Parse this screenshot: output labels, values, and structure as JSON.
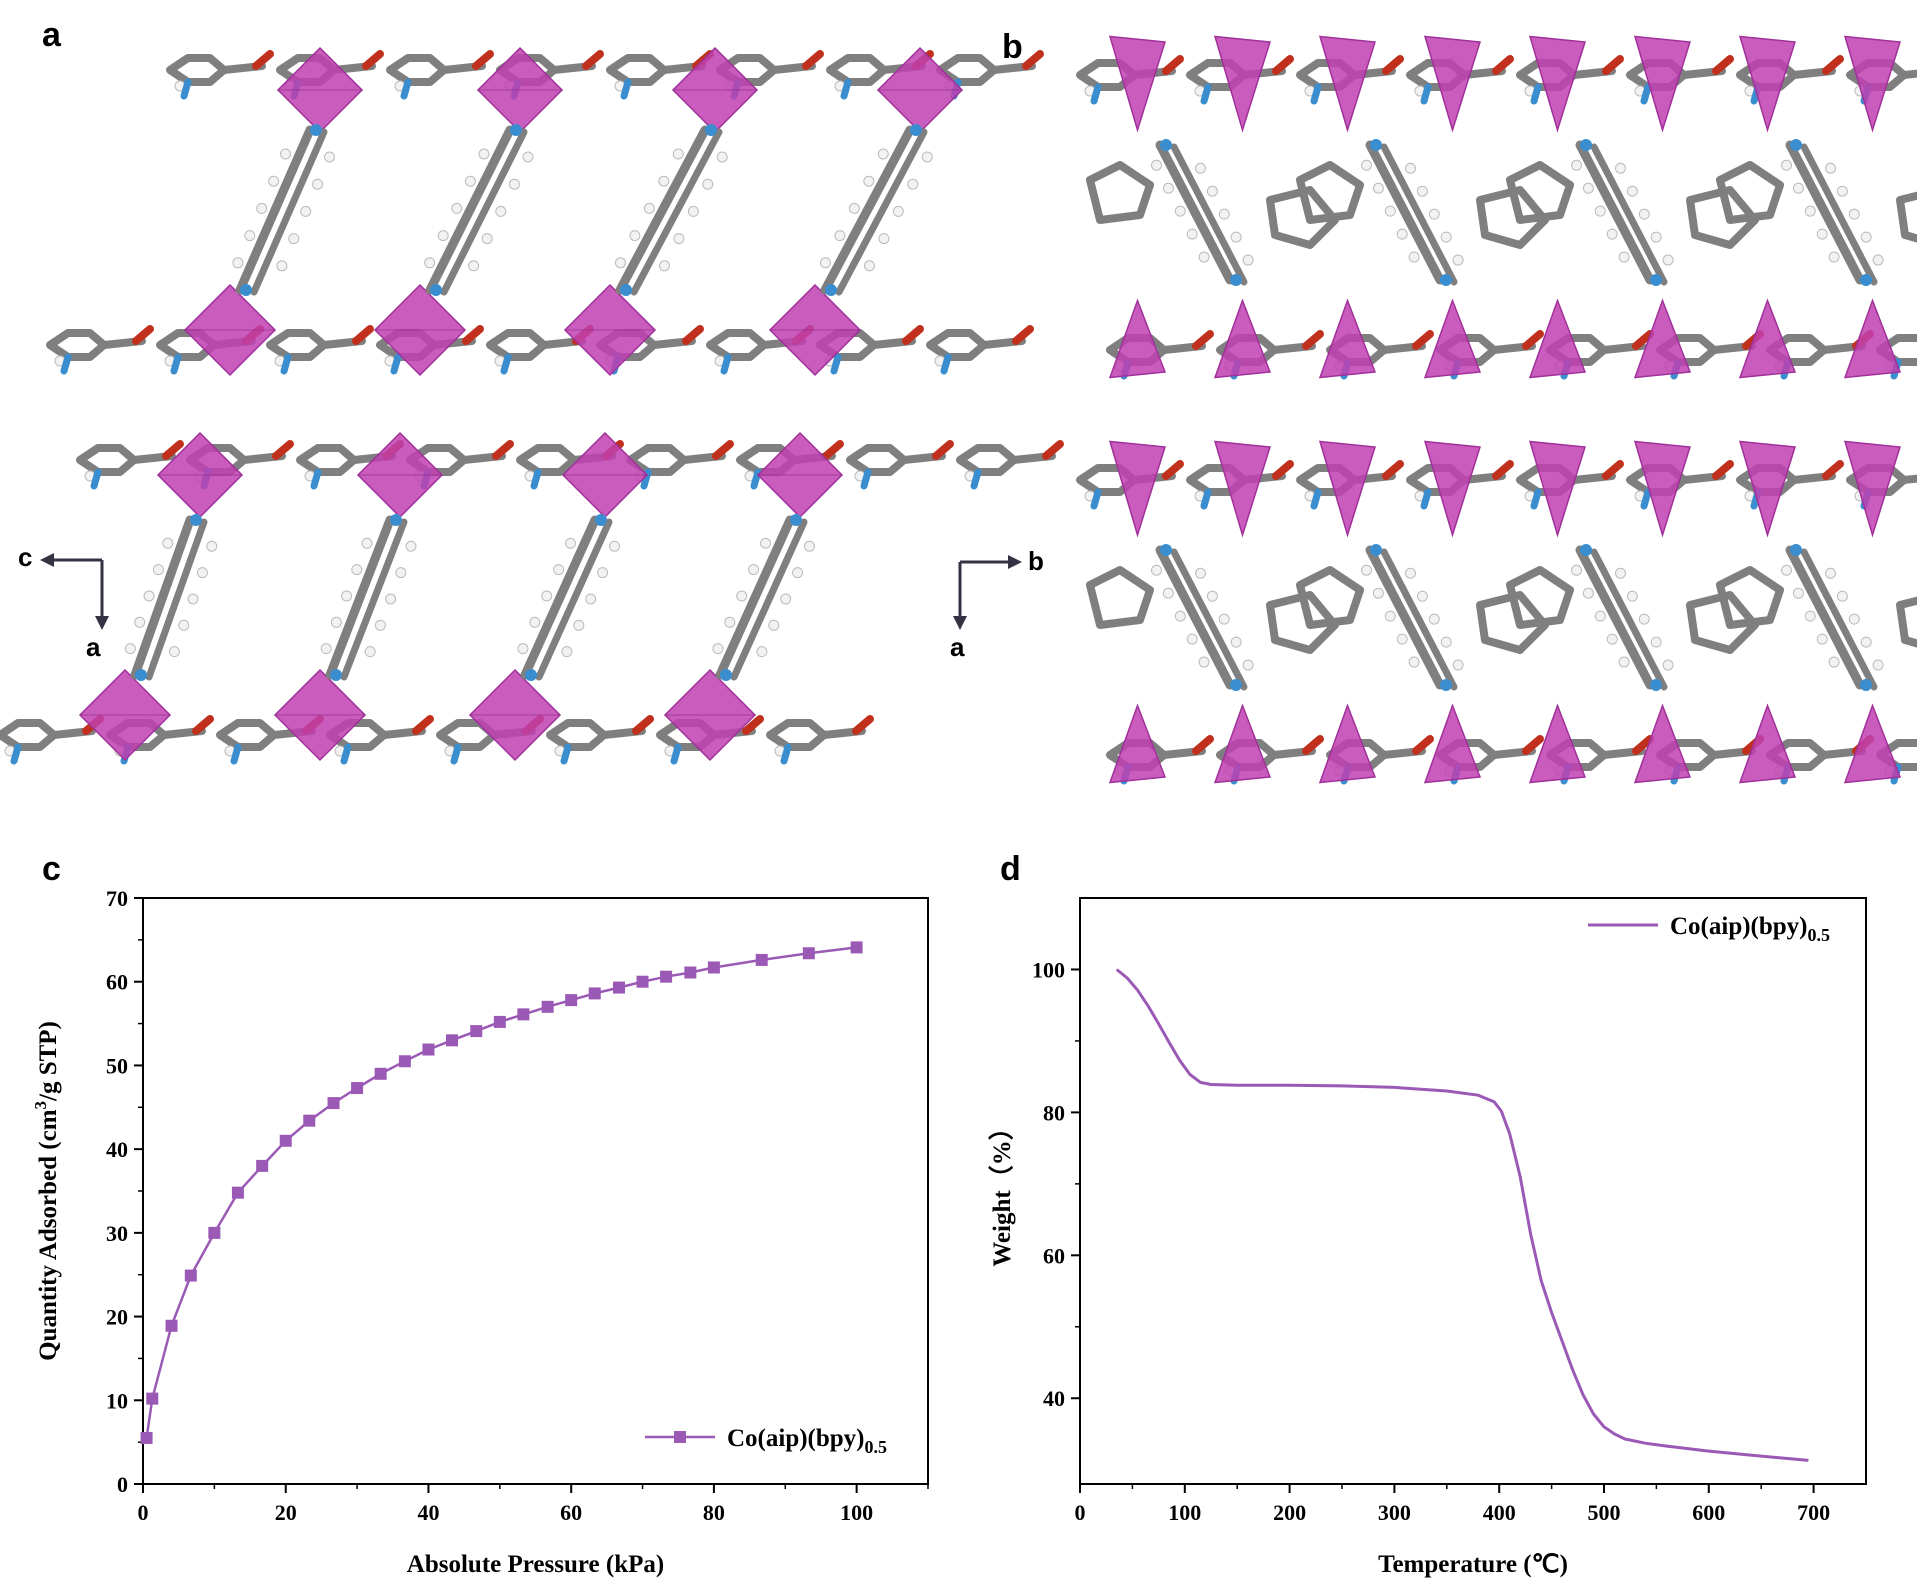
{
  "panels": {
    "a": {
      "letter": "a",
      "axes": {
        "horizontal": "c",
        "vertical": "a"
      }
    },
    "b": {
      "letter": "b",
      "axes": {
        "horizontal": "b",
        "vertical": "a"
      }
    }
  },
  "colors": {
    "polyhedron": "#c040b0",
    "carbon": "#7f7f7f",
    "oxygen": "#c0301c",
    "nitrogen": "#3a8ecf",
    "hydrogen": "#f2f2f2",
    "series": "#9b59b6"
  },
  "chart_data": [
    {
      "panel": "c",
      "type": "line",
      "xlabel": "Absolute Pressure (kPa)",
      "ylabel": "Quantity Adsorbed (cm3/g STP)",
      "xlim": [
        0,
        110
      ],
      "ylim": [
        0,
        70
      ],
      "xticks": [
        0,
        20,
        40,
        60,
        80,
        100
      ],
      "yticks": [
        0,
        10,
        20,
        30,
        40,
        50,
        60,
        70
      ],
      "legend_position": "bottom-right",
      "series": [
        {
          "name": "Co(aip)(bpy)0.5",
          "marker": "square",
          "x": [
            0.5,
            1.3,
            4.0,
            6.7,
            10.0,
            13.3,
            16.7,
            20.0,
            23.3,
            26.7,
            30.0,
            33.3,
            36.7,
            40.0,
            43.3,
            46.7,
            50.0,
            53.3,
            56.7,
            60.0,
            63.3,
            66.7,
            70.0,
            73.3,
            76.7,
            80.0,
            86.7,
            93.3,
            100.0
          ],
          "y": [
            5.5,
            10.2,
            18.9,
            24.9,
            30.0,
            34.8,
            38.0,
            41.0,
            43.4,
            45.5,
            47.3,
            49.0,
            50.5,
            51.9,
            53.0,
            54.1,
            55.2,
            56.1,
            57.0,
            57.8,
            58.6,
            59.3,
            60.0,
            60.6,
            61.1,
            61.7,
            62.6,
            63.4,
            64.1
          ]
        }
      ]
    },
    {
      "panel": "d",
      "type": "line",
      "xlabel": "Temperature (℃)",
      "ylabel": "Weight（%）",
      "xlim": [
        0,
        750
      ],
      "ylim": [
        28,
        110
      ],
      "xticks": [
        0,
        100,
        200,
        300,
        400,
        500,
        600,
        700
      ],
      "yticks": [
        40,
        60,
        80,
        100
      ],
      "legend_position": "top-right",
      "series": [
        {
          "name": "Co(aip)(bpy)0.5",
          "x": [
            35,
            45,
            55,
            65,
            75,
            85,
            95,
            105,
            115,
            125,
            150,
            200,
            250,
            300,
            350,
            380,
            395,
            402,
            410,
            420,
            430,
            440,
            450,
            460,
            470,
            480,
            490,
            500,
            510,
            520,
            540,
            560,
            600,
            650,
            695
          ],
          "y": [
            100.0,
            98.8,
            97.1,
            94.9,
            92.4,
            89.8,
            87.3,
            85.3,
            84.2,
            83.9,
            83.8,
            83.8,
            83.7,
            83.5,
            83.0,
            82.4,
            81.5,
            80.2,
            77.0,
            71.0,
            63.0,
            56.5,
            52.0,
            48.0,
            44.0,
            40.5,
            37.8,
            36.0,
            35.0,
            34.3,
            33.7,
            33.3,
            32.6,
            31.9,
            31.3
          ]
        }
      ]
    }
  ]
}
